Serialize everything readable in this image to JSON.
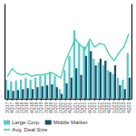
{
  "chart_data": {
    "type": "bar",
    "categories": [
      "3Q17",
      "4Q17",
      "1Q18",
      "2Q18",
      "3Q18",
      "4Q18",
      "1Q19",
      "2Q19",
      "3Q19",
      "4Q19",
      "1Q20",
      "2Q20",
      "3Q20",
      "4Q20",
      "1Q21",
      "2Q21",
      "3Q21",
      "4Q21",
      "1Q22",
      "2Q22",
      "3Q22",
      "4Q22",
      "1Q23",
      "2Q23",
      "3Q23",
      "4Q23"
    ],
    "series": [
      {
        "name": "Large Corp.",
        "color": "#5bc8c8",
        "type": "bar",
        "values": [
          2.0,
          1.8,
          1.9,
          2.0,
          2.2,
          2.0,
          2.2,
          2.4,
          2.5,
          2.8,
          2.4,
          1.0,
          3.0,
          4.5,
          7.2,
          5.8,
          5.5,
          6.0,
          4.2,
          3.8,
          3.5,
          3.0,
          2.6,
          2.2,
          2.0,
          4.8
        ]
      },
      {
        "name": "Middle Market",
        "color": "#1a4f6e",
        "type": "bar",
        "values": [
          0.9,
          0.8,
          0.9,
          1.0,
          1.1,
          1.0,
          1.2,
          1.3,
          1.4,
          1.5,
          1.2,
          0.5,
          1.6,
          2.2,
          3.2,
          2.5,
          4.5,
          5.0,
          3.5,
          4.2,
          4.0,
          2.8,
          3.5,
          1.4,
          1.0,
          2.2
        ]
      },
      {
        "name": "Avg. Deal Size",
        "color": "#2ecfa0",
        "type": "line",
        "axis": "y2",
        "values": [
          2.8,
          3.8,
          3.2,
          3.0,
          3.2,
          2.8,
          3.0,
          3.0,
          3.1,
          3.3,
          3.0,
          2.6,
          4.8,
          6.2,
          7.5,
          6.8,
          6.2,
          7.5,
          6.5,
          7.0,
          6.8,
          5.5,
          4.8,
          5.8,
          6.5,
          8.2
        ]
      }
    ],
    "ylim": [
      0,
      10
    ],
    "yticks": [],
    "y2lim": [
      0,
      12
    ],
    "y2ticks": [],
    "grid": false,
    "tick_labels": "x",
    "legend": "bottom"
  }
}
